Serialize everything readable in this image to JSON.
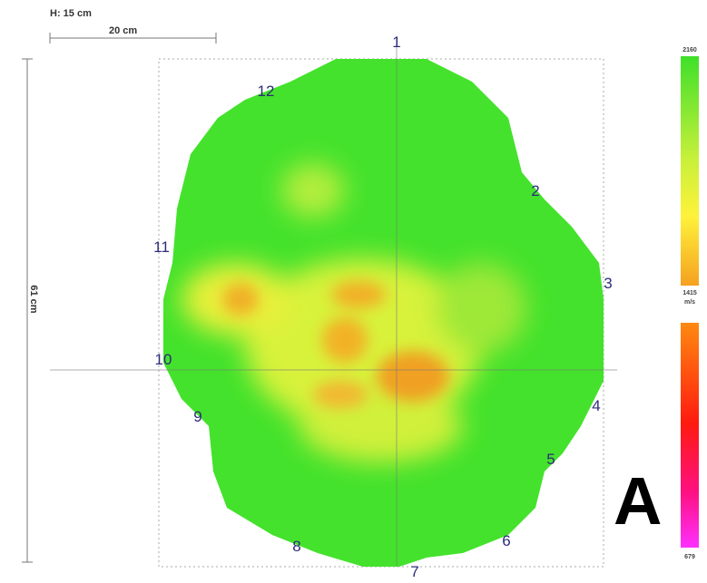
{
  "scale": {
    "height": "H: 15 cm",
    "bar": "20 cm",
    "diameter": "61 cm"
  },
  "sensors": [
    "1",
    "2",
    "3",
    "4",
    "5",
    "6",
    "7",
    "8",
    "9",
    "10",
    "11",
    "12"
  ],
  "legend": {
    "max": "2160",
    "mid": "1415",
    "unit": "m/s",
    "min": "679"
  },
  "panel": "A"
}
